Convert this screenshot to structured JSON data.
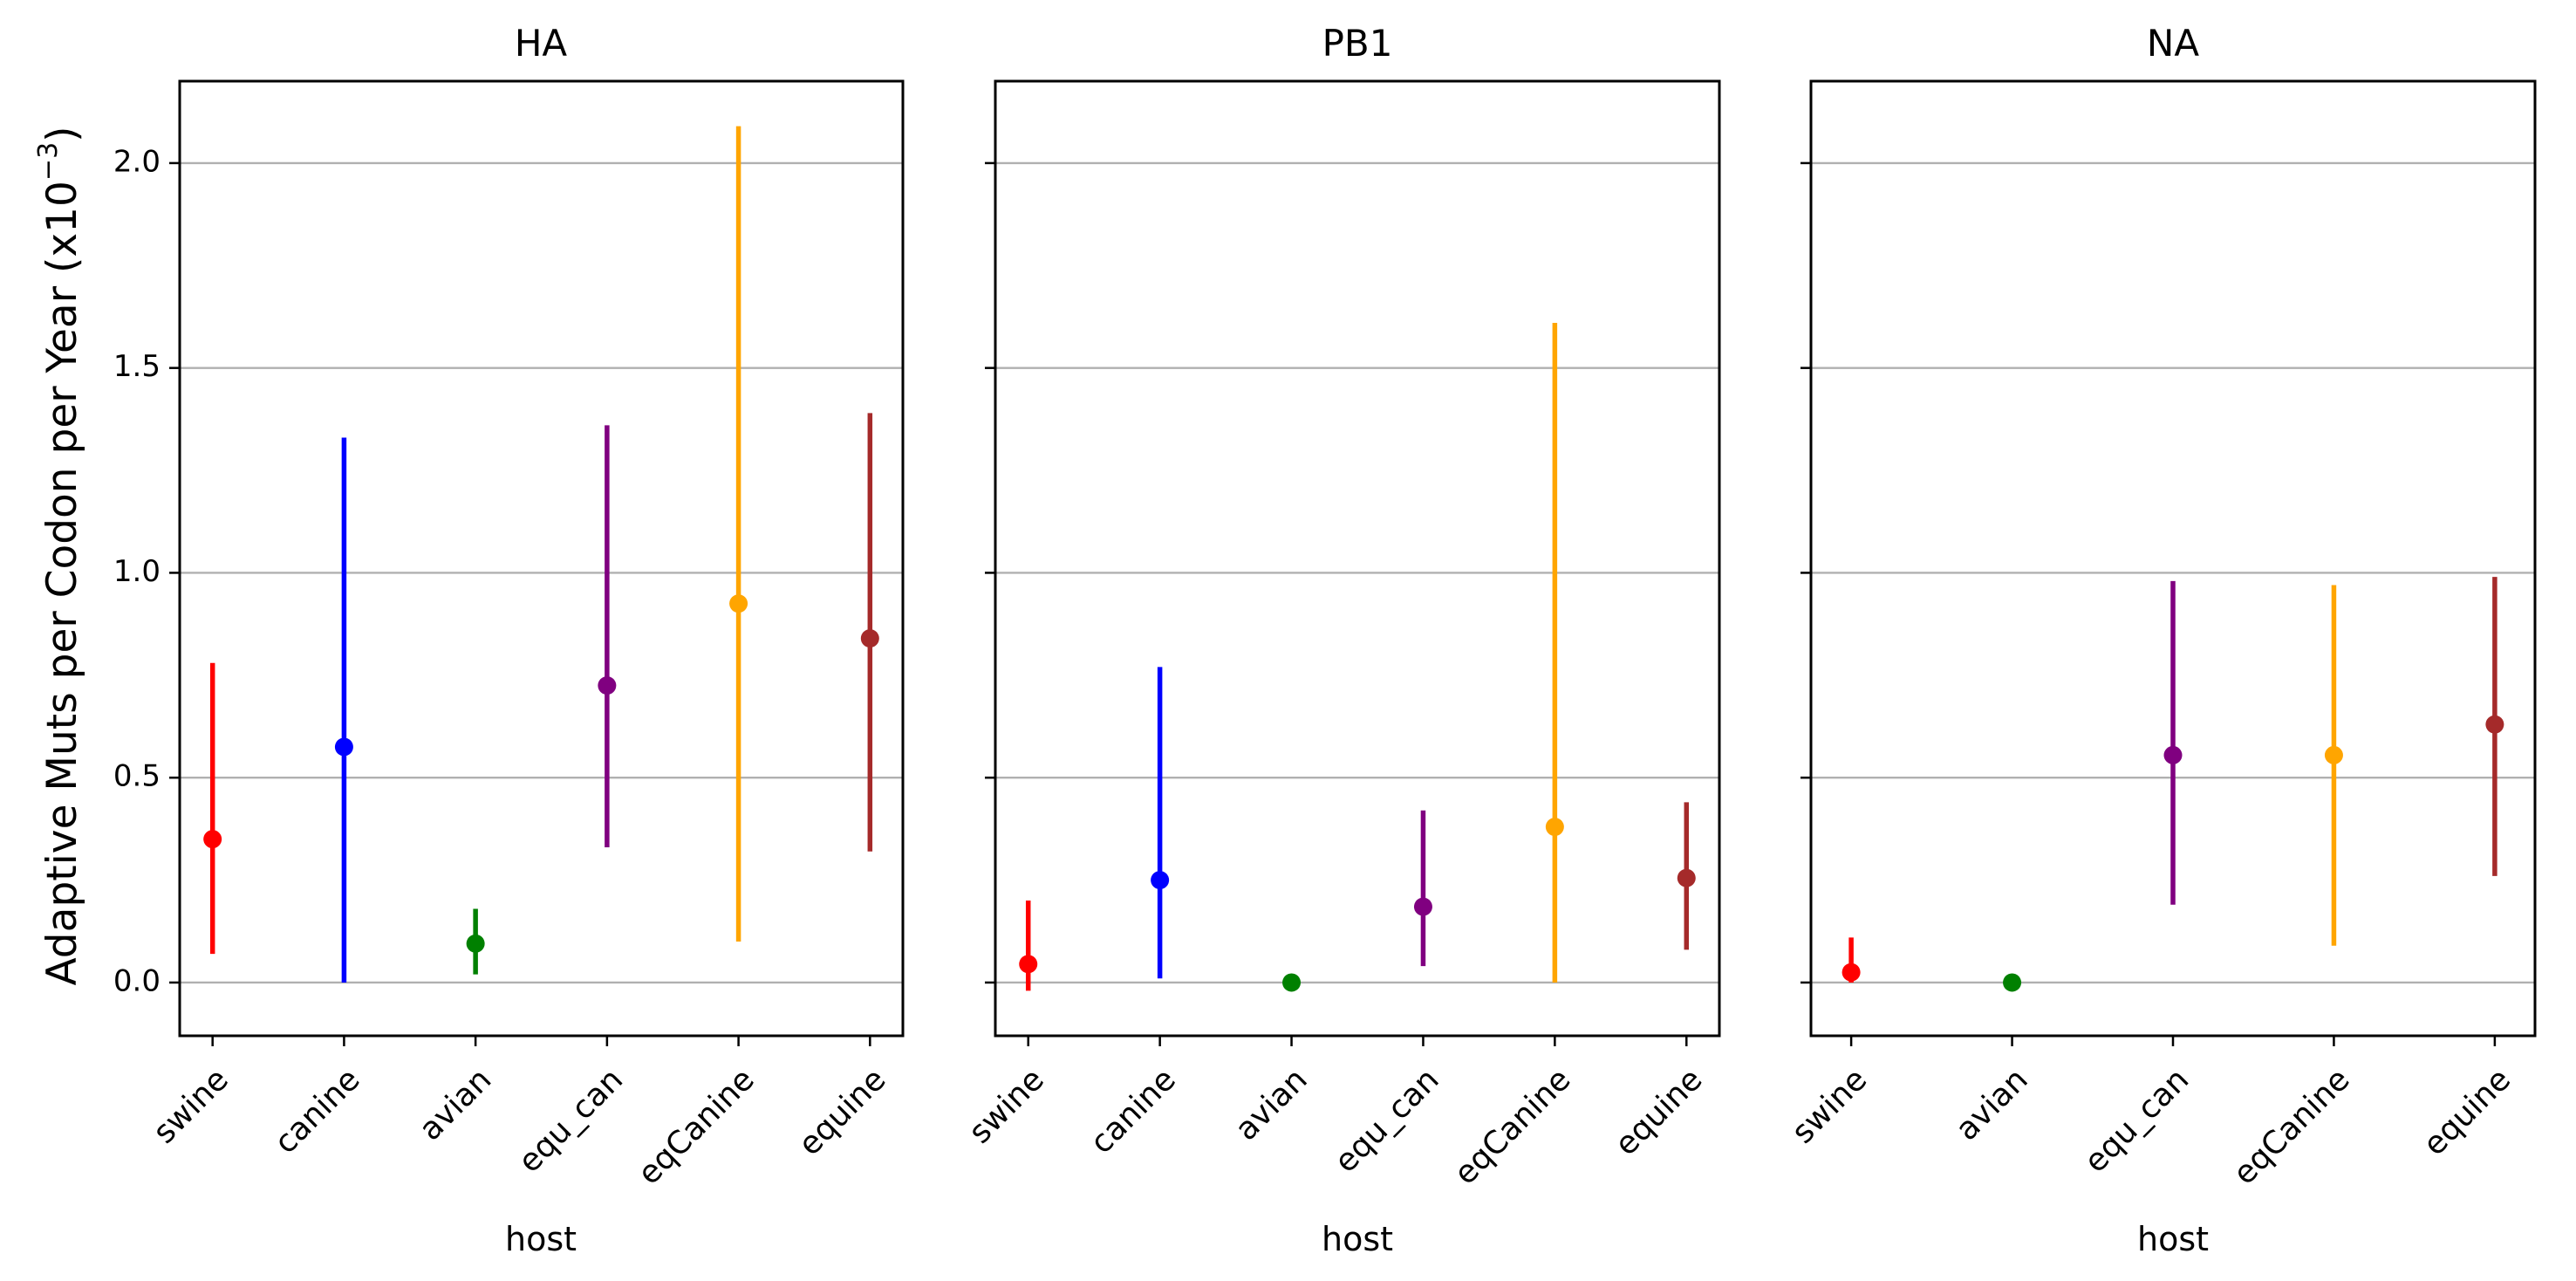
{
  "chart_data": {
    "type": "errorbar",
    "ylabel": "Adaptive Muts per Codon per Year (x10",
    "ylabel_sup": "−3",
    "ylabel_close": ")",
    "ylim": [
      -0.13,
      2.2
    ],
    "yticks": [
      0.0,
      0.5,
      1.0,
      1.5,
      2.0
    ],
    "ytick_labels": [
      "0.0",
      "0.5",
      "1.0",
      "1.5",
      "2.0"
    ],
    "grid": "horizontal",
    "colors": {
      "swine": "#ff0000",
      "canine": "#0000ff",
      "avian": "#008000",
      "equ_can": "#800080",
      "eqCanine": "#ffa500",
      "equine": "#a52a2a"
    },
    "panels": [
      {
        "title": "HA",
        "xlabel": "host",
        "categories": [
          "swine",
          "canine",
          "avian",
          "equ_can",
          "eqCanine",
          "equine"
        ],
        "values": [
          0.35,
          0.575,
          0.095,
          0.725,
          0.925,
          0.84
        ],
        "lower": [
          0.07,
          0.0,
          0.02,
          0.33,
          0.1,
          0.32
        ],
        "upper": [
          0.78,
          1.33,
          0.18,
          1.36,
          2.09,
          1.39
        ]
      },
      {
        "title": "PB1",
        "xlabel": "host",
        "categories": [
          "swine",
          "canine",
          "avian",
          "equ_can",
          "eqCanine",
          "equine"
        ],
        "values": [
          0.045,
          0.25,
          0.0,
          0.185,
          0.38,
          0.255
        ],
        "lower": [
          -0.02,
          0.01,
          0.0,
          0.04,
          0.0,
          0.08
        ],
        "upper": [
          0.2,
          0.77,
          0.0,
          0.42,
          1.61,
          0.44
        ]
      },
      {
        "title": "NA",
        "xlabel": "host",
        "categories": [
          "swine",
          "avian",
          "equ_can",
          "eqCanine",
          "equine"
        ],
        "values": [
          0.025,
          0.0,
          0.555,
          0.555,
          0.63
        ],
        "lower": [
          0.0,
          0.0,
          0.19,
          0.09,
          0.26
        ],
        "upper": [
          0.11,
          0.0,
          0.98,
          0.97,
          0.99
        ]
      }
    ]
  }
}
